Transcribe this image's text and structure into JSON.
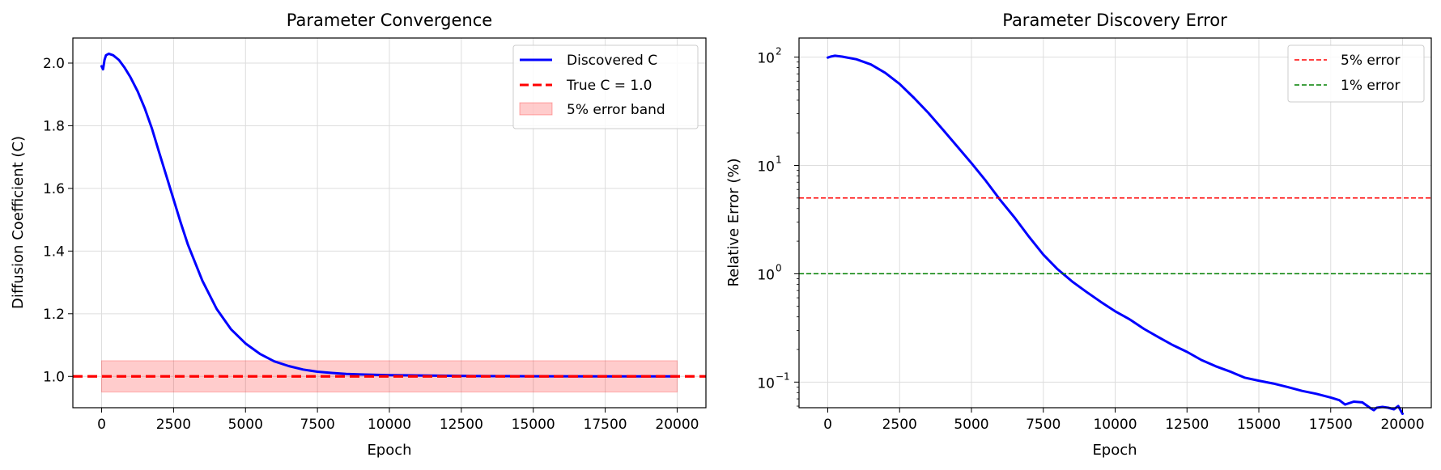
{
  "chart_data": [
    {
      "type": "line",
      "title": "Parameter Convergence",
      "xlabel": "Epoch",
      "ylabel": "Diffusion Coefficient (C)",
      "xlim": [
        -1000,
        21000
      ],
      "ylim": [
        0.9,
        2.08
      ],
      "xticks": [
        0,
        2500,
        5000,
        7500,
        10000,
        12500,
        15000,
        17500,
        20000
      ],
      "xtick_labels": [
        "0",
        "2500",
        "5000",
        "7500",
        "10000",
        "12500",
        "15000",
        "17500",
        "20000"
      ],
      "yticks": [
        1.0,
        1.2,
        1.4,
        1.6,
        1.8,
        2.0
      ],
      "ytick_labels": [
        "1.0",
        "1.2",
        "1.4",
        "1.6",
        "1.8",
        "2.0"
      ],
      "grid": true,
      "legend": "top-right",
      "series": [
        {
          "name": "Discovered C",
          "color": "#0000ff",
          "style": "solid",
          "x": [
            0,
            50,
            100,
            150,
            250,
            400,
            600,
            800,
            1000,
            1250,
            1500,
            1750,
            2000,
            2250,
            2500,
            2750,
            3000,
            3500,
            4000,
            4500,
            5000,
            5500,
            6000,
            6500,
            7000,
            7500,
            8000,
            8500,
            9000,
            10000,
            11000,
            12000,
            13000,
            15000,
            17500,
            20000
          ],
          "y": [
            1.99,
            1.98,
            2.01,
            2.025,
            2.03,
            2.025,
            2.01,
            1.985,
            1.955,
            1.91,
            1.855,
            1.79,
            1.715,
            1.64,
            1.565,
            1.49,
            1.42,
            1.305,
            1.215,
            1.15,
            1.105,
            1.072,
            1.048,
            1.033,
            1.022,
            1.015,
            1.011,
            1.008,
            1.006,
            1.004,
            1.003,
            1.002,
            1.001,
            1.0005,
            1.0002,
            1.0001
          ]
        },
        {
          "name": "True C = 1.0",
          "color": "#ff0000",
          "style": "dashed",
          "hline": 1.0
        }
      ],
      "band": {
        "name": "5% error band",
        "color": "#ff0000",
        "x": [
          0,
          20000
        ],
        "y": [
          0.95,
          1.05
        ]
      }
    },
    {
      "type": "line",
      "title": "Parameter Discovery Error",
      "xlabel": "Epoch",
      "ylabel": "Relative Error (%)",
      "yscale": "log",
      "xlim": [
        -1000,
        21000
      ],
      "ylim": [
        0.058,
        150
      ],
      "xticks": [
        0,
        2500,
        5000,
        7500,
        10000,
        12500,
        15000,
        17500,
        20000
      ],
      "xtick_labels": [
        "0",
        "2500",
        "5000",
        "7500",
        "10000",
        "12500",
        "15000",
        "17500",
        "20000"
      ],
      "yticks": [
        0.1,
        1,
        10,
        100
      ],
      "ytick_labels": [
        [
          "10",
          "−1"
        ],
        [
          "10",
          "0"
        ],
        [
          "10",
          "1"
        ],
        [
          "10",
          "2"
        ]
      ],
      "grid": true,
      "legend": "top-right",
      "series": [
        {
          "name": "",
          "color": "#0000ff",
          "style": "solid",
          "x": [
            0,
            100,
            250,
            500,
            1000,
            1500,
            2000,
            2500,
            3000,
            3500,
            4000,
            4500,
            5000,
            5500,
            6000,
            6500,
            7000,
            7500,
            8000,
            8500,
            9000,
            9500,
            10000,
            10500,
            11000,
            11500,
            12000,
            12500,
            13000,
            13500,
            14000,
            14500,
            15000,
            15500,
            16000,
            16500,
            17000,
            17500,
            17800,
            18000,
            18300,
            18600,
            18900,
            19000,
            19100,
            19300,
            19500,
            19700,
            19850,
            20000
          ],
          "y": [
            99,
            101,
            103,
            101,
            95.5,
            85.5,
            71.5,
            56.5,
            42,
            30.5,
            21.5,
            15,
            10.5,
            7.2,
            4.8,
            3.3,
            2.2,
            1.5,
            1.1,
            0.85,
            0.68,
            0.55,
            0.45,
            0.38,
            0.31,
            0.26,
            0.22,
            0.19,
            0.16,
            0.14,
            0.125,
            0.11,
            0.103,
            0.097,
            0.09,
            0.083,
            0.078,
            0.072,
            0.068,
            0.062,
            0.066,
            0.065,
            0.057,
            0.055,
            0.058,
            0.059,
            0.058,
            0.056,
            0.06,
            0.051
          ]
        },
        {
          "name": "5% error",
          "color": "#ff0000",
          "style": "dashed",
          "hline": 5
        },
        {
          "name": "1% error",
          "color": "#008000",
          "style": "dashed",
          "hline": 1
        }
      ]
    }
  ]
}
